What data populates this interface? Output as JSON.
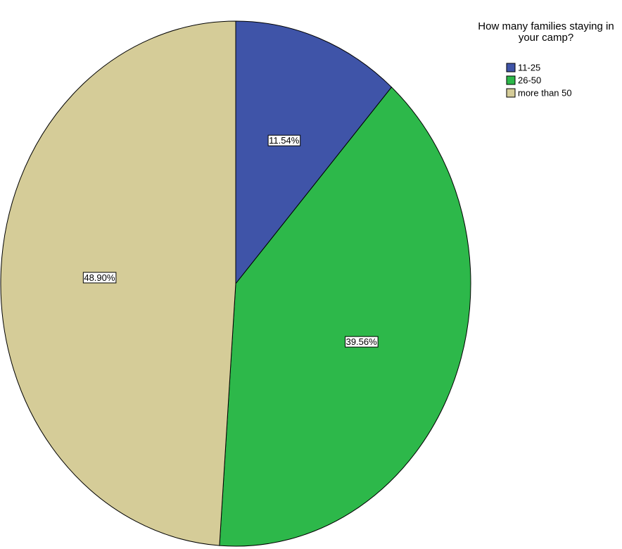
{
  "chart_data": {
    "type": "pie",
    "legend_title": "How many families staying in your camp?",
    "categories": [
      "11-25",
      "26-50",
      "more than 50"
    ],
    "values": [
      11.54,
      39.56,
      48.9
    ],
    "value_labels": [
      "11.54%",
      "39.56%",
      "48.90%"
    ],
    "colors": [
      "#3f54a8",
      "#2db84a",
      "#d5cc98"
    ],
    "legend_position": "top-right"
  }
}
